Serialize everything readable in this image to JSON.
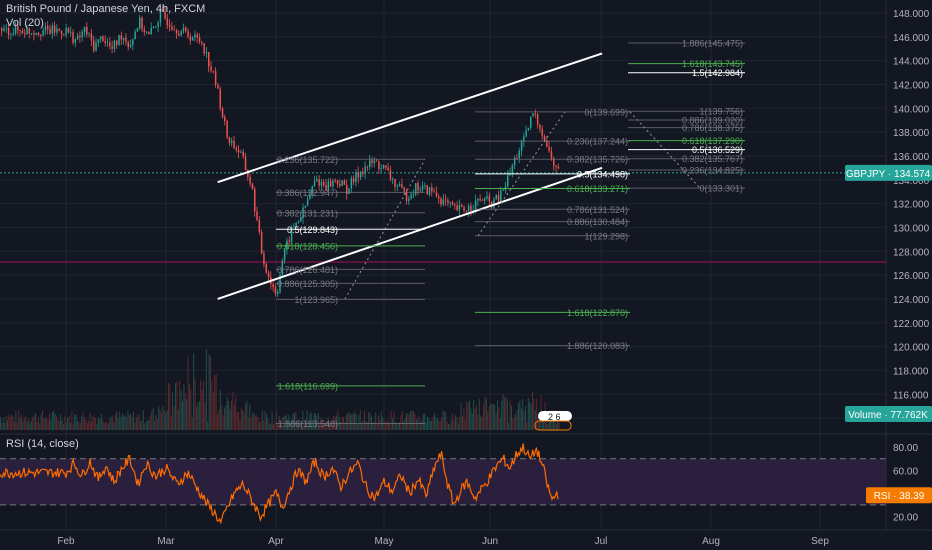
{
  "header": {
    "title": "British Pound / Japanese Yen, 4h, FXCM",
    "volume_label": "Vol (20)",
    "rsi_label": "RSI (14, close)"
  },
  "badges": {
    "price_tag": "GBPJPY · 134.574",
    "volume_tag": "Volume · 77.762K",
    "rsi_tag": "RSI · 38.39",
    "event_mark": "2 6"
  },
  "colors": {
    "background": "#131722",
    "grid": "#1f2433",
    "up_candle": "#26a69a",
    "down_candle": "#ef5350",
    "channel": "#ffffff",
    "fib_grey": "#787b86",
    "fib_green": "#4caf50",
    "rsi_line": "#ff6d00",
    "rsi_band": "#2a1f3d",
    "level_line": "#880e4f",
    "badge_green": "#26a69a",
    "badge_orange": "#f57c00"
  },
  "chart_data": [
    {
      "type": "candlestick",
      "title": "British Pound / Japanese Yen, 4h, FXCM",
      "x_labels": [
        "Feb",
        "Mar",
        "Apr",
        "May",
        "Jun",
        "Jul",
        "Aug",
        "Sep"
      ],
      "y_ticks": [
        "148.000",
        "146.000",
        "144.000",
        "142.000",
        "140.000",
        "138.000",
        "136.000",
        "134.000",
        "132.000",
        "130.000",
        "128.000",
        "126.000",
        "124.000",
        "122.000",
        "120.000",
        "118.000",
        "116.000",
        "114.000"
      ],
      "ylim": [
        113,
        148.5
      ],
      "last_price": 134.574,
      "horizontal_level": 127.1,
      "series_points": [
        [
          0,
          146.5
        ],
        [
          0.1,
          145.6
        ],
        [
          0.18,
          146.6
        ],
        [
          0.27,
          145.2
        ],
        [
          0.36,
          146.0
        ],
        [
          0.45,
          144.9
        ],
        [
          0.55,
          146.2
        ],
        [
          0.63,
          145.3
        ],
        [
          0.72,
          147.3
        ],
        [
          0.82,
          146.0
        ],
        [
          0.94,
          147.9
        ],
        [
          1.1,
          146.6
        ],
        [
          1.32,
          145.6
        ],
        [
          1.45,
          142.0
        ],
        [
          1.55,
          137.6
        ],
        [
          1.67,
          136.2
        ],
        [
          1.77,
          133.5
        ],
        [
          1.87,
          127.5
        ],
        [
          1.95,
          125.3
        ],
        [
          2.0,
          124.4
        ],
        [
          2.05,
          127.2
        ],
        [
          2.14,
          129.8
        ],
        [
          2.24,
          131.2
        ],
        [
          2.36,
          134.0
        ],
        [
          2.46,
          133.5
        ],
        [
          2.55,
          134.0
        ],
        [
          2.65,
          133.2
        ],
        [
          2.78,
          134.8
        ],
        [
          2.9,
          135.5
        ],
        [
          3.0,
          134.9
        ],
        [
          3.1,
          133.6
        ],
        [
          3.2,
          132.6
        ],
        [
          3.3,
          133.4
        ],
        [
          3.45,
          133.0
        ],
        [
          3.55,
          132.2
        ],
        [
          3.65,
          131.5
        ],
        [
          3.75,
          131.5
        ],
        [
          3.82,
          131.8
        ],
        [
          3.92,
          132.4
        ],
        [
          4.0,
          132.0
        ],
        [
          4.08,
          132.5
        ],
        [
          4.15,
          134.0
        ],
        [
          4.23,
          136.0
        ],
        [
          4.31,
          137.5
        ],
        [
          4.38,
          139.6
        ],
        [
          4.45,
          138.4
        ],
        [
          4.52,
          136.4
        ],
        [
          4.58,
          135.0
        ],
        [
          4.62,
          134.5
        ]
      ],
      "channel": {
        "upper": [
          [
            1.47,
            133.8
          ],
          [
            5.01,
            144.6
          ]
        ],
        "lower": [
          [
            1.47,
            124.0
          ],
          [
            5.01,
            135.0
          ]
        ]
      },
      "fib_sets": [
        {
          "levels": [
            {
              "label": "0.236(135.722)",
              "value": 135.722,
              "color": "grey"
            },
            {
              "label": "0.386(132.947)",
              "value": 132.947,
              "color": "grey"
            },
            {
              "label": "0.382(131.231)",
              "value": 131.231,
              "color": "grey"
            },
            {
              "label": "0.5(129.843)",
              "value": 129.843,
              "color": "white"
            },
            {
              "label": "0.618(128.456)",
              "value": 128.456,
              "color": "green"
            },
            {
              "label": "0.786(126.481)",
              "value": 126.481,
              "color": "grey"
            },
            {
              "label": "0.886(125.305)",
              "value": 125.305,
              "color": "grey"
            },
            {
              "label": "1(123.965)",
              "value": 123.965,
              "color": "grey"
            },
            {
              "label": "1.618(116.699)",
              "value": 116.699,
              "color": "green"
            },
            {
              "label": "1.886(113.548)",
              "value": 113.548,
              "color": "grey"
            }
          ]
        },
        {
          "levels": [
            {
              "label": "0(139.699)",
              "value": 139.699,
              "color": "grey"
            },
            {
              "label": "0.236(137.244)",
              "value": 137.244,
              "color": "grey"
            },
            {
              "label": "0.382(135.726)",
              "value": 135.726,
              "color": "grey"
            },
            {
              "label": "0.5(134.498)",
              "value": 134.498,
              "color": "white"
            },
            {
              "label": "0.618(133.271)",
              "value": 133.271,
              "color": "green"
            },
            {
              "label": "0.786(131.524)",
              "value": 131.524,
              "color": "grey"
            },
            {
              "label": "0.886(130.484)",
              "value": 130.484,
              "color": "grey"
            },
            {
              "label": "1(129.298)",
              "value": 129.298,
              "color": "grey"
            },
            {
              "label": "1.618(122.870)",
              "value": 122.87,
              "color": "green"
            },
            {
              "label": "1.886(120.083)",
              "value": 120.083,
              "color": "grey"
            }
          ]
        },
        {
          "levels": [
            {
              "label": "1.886(145.475)",
              "value": 145.475,
              "color": "grey"
            },
            {
              "label": "1.618(143.745)",
              "value": 143.745,
              "color": "green"
            },
            {
              "label": "1.5(142.984)",
              "value": 142.984,
              "color": "white"
            },
            {
              "label": "1(139.756)",
              "value": 139.756,
              "color": "grey"
            },
            {
              "label": "0.886(139.020)",
              "value": 139.02,
              "color": "grey"
            },
            {
              "label": "0.786(138.375)",
              "value": 138.375,
              "color": "grey"
            },
            {
              "label": "0.618(137.290)",
              "value": 137.29,
              "color": "green"
            },
            {
              "label": "0.5(136.529)",
              "value": 136.529,
              "color": "white"
            },
            {
              "label": "0.382(135.767)",
              "value": 135.767,
              "color": "grey"
            },
            {
              "label": "0.236(134.825)",
              "value": 134.825,
              "color": "grey"
            },
            {
              "label": "0(133.301)",
              "value": 133.301,
              "color": "grey"
            }
          ]
        }
      ]
    },
    {
      "type": "line",
      "title": "RSI (14, close)",
      "y_ticks": [
        "80.00",
        "60.00",
        "40.00",
        "20.00"
      ],
      "ylim": [
        10,
        88
      ],
      "bands": [
        70,
        30
      ],
      "last_value": 38.39,
      "series_points": [
        [
          0,
          58
        ],
        [
          0.08,
          66
        ],
        [
          0.16,
          55
        ],
        [
          0.24,
          68
        ],
        [
          0.32,
          52
        ],
        [
          0.4,
          64
        ],
        [
          0.48,
          50
        ],
        [
          0.56,
          62
        ],
        [
          0.64,
          70
        ],
        [
          0.72,
          48
        ],
        [
          0.8,
          66
        ],
        [
          0.9,
          55
        ],
        [
          1.0,
          62
        ],
        [
          1.1,
          48
        ],
        [
          1.2,
          58
        ],
        [
          1.3,
          42
        ],
        [
          1.38,
          30
        ],
        [
          1.45,
          22
        ],
        [
          1.5,
          14
        ],
        [
          1.56,
          28
        ],
        [
          1.62,
          40
        ],
        [
          1.7,
          48
        ],
        [
          1.78,
          34
        ],
        [
          1.86,
          20
        ],
        [
          1.94,
          32
        ],
        [
          2.0,
          40
        ],
        [
          2.06,
          28
        ],
        [
          2.12,
          42
        ],
        [
          2.2,
          60
        ],
        [
          2.28,
          50
        ],
        [
          2.36,
          68
        ],
        [
          2.44,
          54
        ],
        [
          2.52,
          62
        ],
        [
          2.6,
          46
        ],
        [
          2.68,
          58
        ],
        [
          2.76,
          66
        ],
        [
          2.84,
          44
        ],
        [
          2.92,
          36
        ],
        [
          3.0,
          50
        ],
        [
          3.08,
          42
        ],
        [
          3.16,
          56
        ],
        [
          3.24,
          40
        ],
        [
          3.32,
          52
        ],
        [
          3.4,
          38
        ],
        [
          3.48,
          64
        ],
        [
          3.54,
          74
        ],
        [
          3.6,
          48
        ],
        [
          3.66,
          30
        ],
        [
          3.72,
          42
        ],
        [
          3.78,
          50
        ],
        [
          3.86,
          36
        ],
        [
          3.94,
          46
        ],
        [
          4.0,
          54
        ],
        [
          4.06,
          64
        ],
        [
          4.12,
          70
        ],
        [
          4.18,
          62
        ],
        [
          4.24,
          74
        ],
        [
          4.3,
          80
        ],
        [
          4.36,
          70
        ],
        [
          4.42,
          78
        ],
        [
          4.48,
          62
        ],
        [
          4.52,
          46
        ],
        [
          4.56,
          34
        ],
        [
          4.6,
          40
        ],
        [
          4.63,
          38
        ]
      ]
    }
  ]
}
